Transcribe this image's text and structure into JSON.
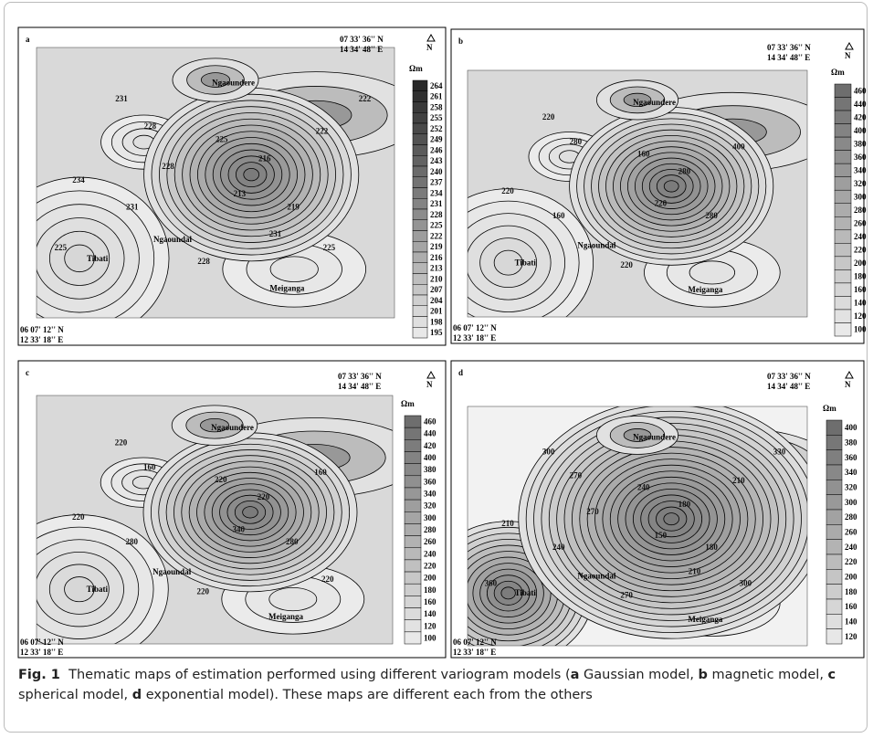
{
  "panels": [
    {
      "label": "a",
      "coord_top": [
        "07 33' 36'' N",
        "14 34' 48'' E"
      ],
      "coord_bottom": [
        "06 07' 12'' N",
        "12 33' 18'' E"
      ],
      "north": "N",
      "unit": "Ωm",
      "legend": [
        264,
        261,
        258,
        255,
        252,
        249,
        246,
        243,
        240,
        237,
        234,
        231,
        228,
        225,
        222,
        219,
        216,
        213,
        210,
        207,
        204,
        201,
        198,
        195
      ],
      "places": [
        "Ngaoundere",
        "Ngaoundal",
        "Tibati",
        "Meiganga"
      ],
      "contour_labels": [
        231,
        228,
        225,
        222,
        216,
        213,
        219,
        234,
        231,
        228,
        225,
        222,
        225,
        228,
        231
      ]
    },
    {
      "label": "b",
      "coord_top": [
        "07 33' 36'' N",
        "14 34' 48'' E"
      ],
      "coord_bottom": [
        "06 07' 12'' N",
        "12 33' 18'' E"
      ],
      "north": "N",
      "unit": "Ωm",
      "legend": [
        460,
        440,
        420,
        400,
        380,
        360,
        340,
        320,
        300,
        280,
        260,
        240,
        220,
        200,
        180,
        160,
        140,
        120,
        100
      ],
      "places": [
        "Ngaoundere",
        "Ngaoundal",
        "Tibati",
        "Meiganga"
      ],
      "contour_labels": [
        220,
        280,
        160,
        400,
        280,
        220,
        280,
        220,
        160,
        220
      ]
    },
    {
      "label": "c",
      "coord_top": [
        "07 33' 36'' N",
        "14 34' 48'' E"
      ],
      "coord_bottom": [
        "06 07' 12'' N",
        "12 33' 18'' E"
      ],
      "north": "N",
      "unit": "Ωm",
      "legend": [
        460,
        440,
        420,
        400,
        380,
        360,
        340,
        320,
        300,
        280,
        260,
        240,
        220,
        200,
        180,
        160,
        140,
        120,
        100
      ],
      "places": [
        "Ngaoundere",
        "Ngaoundal",
        "Tibati",
        "Meiganga"
      ],
      "contour_labels": [
        220,
        160,
        220,
        160,
        220,
        340,
        280,
        220,
        280,
        220,
        220
      ]
    },
    {
      "label": "d",
      "coord_top": [
        "07 33' 36'' N",
        "14 34' 48'' E"
      ],
      "coord_bottom": [
        "06 07' 12'' N",
        "12 33' 18'' E"
      ],
      "north": "N",
      "unit": "Ωm",
      "legend": [
        400,
        380,
        360,
        340,
        320,
        300,
        280,
        260,
        240,
        220,
        200,
        180,
        160,
        140,
        120
      ],
      "places": [
        "Ngaoundere",
        "Ngaoundal",
        "Tibati",
        "Meiganga"
      ],
      "contour_labels": [
        300,
        270,
        240,
        210,
        180,
        150,
        180,
        210,
        240,
        270,
        300,
        330,
        360,
        270,
        210
      ]
    }
  ],
  "caption": {
    "label": "Fig. 1",
    "parts": [
      "Thematic maps of estimation performed using different variogram models (",
      "a",
      " Gaussian model, ",
      "b",
      " magnetic model, ",
      "c",
      " spherical model, ",
      "d",
      " exponential model). These maps are different each from the others"
    ]
  }
}
